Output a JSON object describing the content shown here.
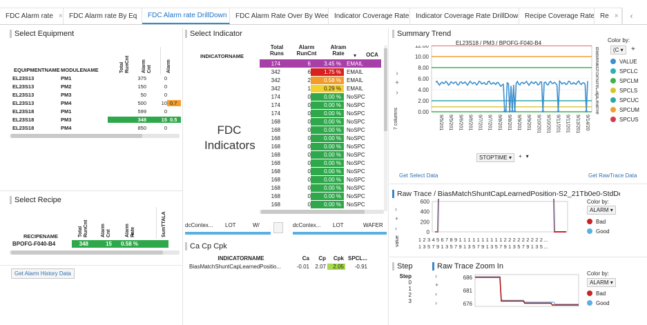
{
  "tabs": [
    {
      "label": "FDC Alarm rate",
      "active": false
    },
    {
      "label": "FDC Alarm rate By Eq",
      "active": false
    },
    {
      "label": "FDC Alarm rate DrillDown",
      "active": true
    },
    {
      "label": "FDC Alarm Rate Over By Week",
      "active": false
    },
    {
      "label": "Indicator Coverage Rate",
      "active": false
    },
    {
      "label": "Indicator Coverage Rate DrillDown",
      "active": false
    },
    {
      "label": "Recipe Coverage Rate",
      "active": false
    },
    {
      "label": "Re",
      "active": false
    }
  ],
  "tab_close": "×",
  "tab_prev": "‹",
  "equipment": {
    "title": "Select Equipment",
    "columns": [
      "EQUIPMENTNAME",
      "MODULENAME",
      "Total RunCnt",
      "Alarm Cnt",
      "Alarm"
    ],
    "rows": [
      [
        "EL23S13",
        "PM1",
        "375",
        "0",
        ""
      ],
      [
        "EL23S13",
        "PM2",
        "150",
        "0",
        ""
      ],
      [
        "EL23S13",
        "PM3",
        "50",
        "0",
        ""
      ],
      [
        "EL23S13",
        "PM4",
        "500",
        "10",
        "0.7"
      ],
      [
        "EL23S18",
        "PM1",
        "599",
        "0",
        ""
      ],
      [
        "EL23S18",
        "PM3",
        "348",
        "15",
        "0.5"
      ],
      [
        "EL23S18",
        "PM4",
        "850",
        "0",
        ""
      ]
    ],
    "highlight_colors": {
      "row3": "#f39c2b",
      "row5": "#2ea84a"
    }
  },
  "recipe": {
    "title": "Select Recipe",
    "columns": [
      "RECIPENAME",
      "Total RunCnt",
      "Alarm Cnt",
      "Alarm Rate",
      "SumTTALA"
    ],
    "sort_mark": "▾",
    "row": [
      "BPOFG-F040-B4",
      "348",
      "15",
      "0.58 %"
    ],
    "button": "Get Alarm History Data"
  },
  "indicator": {
    "title": "Select Indicator",
    "overlay": [
      "FDC",
      "Indicators"
    ],
    "columns": [
      "INDICATORNAME",
      "Total Runs",
      "Alarm RunCnt",
      "Alram Rate",
      "OCA"
    ],
    "sort_mark": "▾",
    "rows": [
      [
        "174",
        "6",
        "3.45 %",
        "EMAIL",
        "#a83ea8"
      ],
      [
        "342",
        "6",
        "1.75 %",
        "EMAIL",
        "#d82020"
      ],
      [
        "342",
        "2",
        "0.58 %",
        "EMAIL",
        "#f39c2b"
      ],
      [
        "342",
        "1",
        "0.29 %",
        "EMAIL",
        "#f2d230"
      ],
      [
        "174",
        "0",
        "0.00 %",
        "NoSPC",
        "#2ea84a"
      ],
      [
        "174",
        "0",
        "0.00 %",
        "NoSPC",
        "#2ea84a"
      ],
      [
        "174",
        "0",
        "0.00 %",
        "NoSPC",
        "#2ea84a"
      ],
      [
        "168",
        "0",
        "0.00 %",
        "NoSPC",
        "#2ea84a"
      ],
      [
        "168",
        "0",
        "0.00 %",
        "NoSPC",
        "#2ea84a"
      ],
      [
        "168",
        "0",
        "0.00 %",
        "NoSPC",
        "#2ea84a"
      ],
      [
        "168",
        "0",
        "0.00 %",
        "NoSPC",
        "#2ea84a"
      ],
      [
        "168",
        "0",
        "0.00 %",
        "NoSPC",
        "#2ea84a"
      ],
      [
        "168",
        "0",
        "0.00 %",
        "NoSPC",
        "#2ea84a"
      ],
      [
        "168",
        "0",
        "0.00 %",
        "NoSPC",
        "#2ea84a"
      ],
      [
        "168",
        "0",
        "0.00 %",
        "NoSPC",
        "#2ea84a"
      ],
      [
        "168",
        "0",
        "0.00 %",
        "NoSPC",
        "#2ea84a"
      ],
      [
        "168",
        "0",
        "0.00 %",
        "NoSPC",
        "#2ea84a"
      ],
      [
        "168",
        "0",
        "0.00 %",
        "NoSPC",
        "#2ea84a"
      ]
    ]
  },
  "context_tables": {
    "left_columns": [
      "dcContex...",
      "LOT",
      "W/"
    ],
    "right_columns": [
      "dcContex...",
      "LOT",
      "WAFER"
    ]
  },
  "cacp": {
    "title": "Ca Cp Cpk",
    "columns": [
      "INDICATORNAME",
      "Ca",
      "Cp",
      "Cpk",
      "SPCL..."
    ],
    "row": [
      "BiasMatchShuntCapLearnedPositio...",
      "-0.01",
      "2.07",
      "2.05",
      "-0.91"
    ]
  },
  "summary": {
    "title": "Summary Trend",
    "chart_title": "EL23S18 / PM3 / BPOFG-F040-B4",
    "y_ticks": [
      "12.00",
      "10.00",
      "8.00",
      "6.00",
      "4.00",
      "2.00",
      "0.00"
    ],
    "y_right_label": "BiasMatchShuntCapLearne",
    "x_ticks": [
      "9/5/201",
      "9/5/201",
      "9/6/201",
      "9/6/201",
      "9/7/201",
      "9/7/201",
      "9/8/201",
      "9/8/201",
      "9/9/201",
      "9/9/201",
      "9/10/201",
      "9/10/201",
      "9/11/201",
      "9/11/201",
      "9/13/201",
      "9/14/20"
    ],
    "x_axis": "STOPTIME",
    "side_label": "7 columns",
    "color_by_label": "Color by:",
    "color_by_value": "(C",
    "legend": [
      {
        "name": "VALUE",
        "color": "#3c8fd0"
      },
      {
        "name": "SPCLC",
        "color": "#2eb0b8"
      },
      {
        "name": "SPCLM",
        "color": "#3cb24a"
      },
      {
        "name": "SPCLS",
        "color": "#d8c42a"
      },
      {
        "name": "SPCUC",
        "color": "#2fa5a8"
      },
      {
        "name": "SPCUM",
        "color": "#f0a030"
      },
      {
        "name": "SPCUS",
        "color": "#d63a48"
      }
    ],
    "buttons": [
      "Get Select Data",
      "Get RawTrace Data"
    ]
  },
  "rawtrace": {
    "title": "Raw Trace / BiasMatchShuntCapLearnedPosition-S2_21Tb0e0-StdDevT",
    "y_ticks": [
      "600",
      "400",
      "200",
      "0"
    ],
    "y_label": "value",
    "x_row1": [
      "1",
      "2",
      "3",
      "4",
      "5",
      "6",
      "7",
      "8",
      "9",
      "1",
      "1",
      "1",
      "1",
      "1",
      "1",
      "1",
      "1",
      "1",
      "1",
      "2",
      "2",
      "2",
      "2",
      "2",
      "2",
      "2",
      "2",
      "2",
      "..."
    ],
    "x_row2": [
      "1",
      "3",
      "5",
      "7",
      "9",
      "1",
      "3",
      "5",
      "7",
      "9",
      "1",
      "3",
      "5",
      "7",
      "9",
      "1",
      "3",
      "5",
      "7",
      "9",
      "1",
      "3",
      "5",
      "7",
      "9",
      "1",
      "3",
      "5",
      "..."
    ],
    "color_by_label": "Color by:",
    "color_by_value": "ALARM",
    "legend": [
      {
        "name": "Bad",
        "color": "#cc2222"
      },
      {
        "name": "Good",
        "color": "#5ab0e0"
      }
    ]
  },
  "step": {
    "title": "Step",
    "header": "Step",
    "values": [
      "0",
      "1",
      "2",
      "3"
    ]
  },
  "zoom": {
    "title": "Raw Trace Zoom In",
    "y_ticks": [
      "686",
      "681",
      "676"
    ],
    "color_by_label": "Color by:",
    "color_by_value": "ALARM",
    "legend": [
      {
        "name": "Bad",
        "color": "#cc2222"
      },
      {
        "name": "Good",
        "color": "#5ab0e0"
      }
    ]
  }
}
